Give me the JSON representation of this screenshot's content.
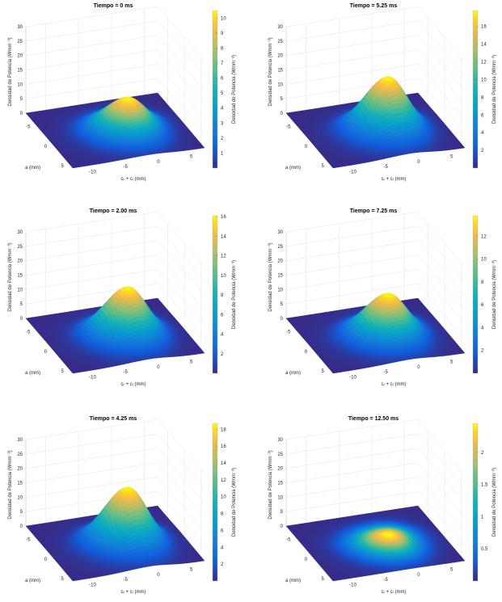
{
  "chart_data": [
    {
      "type": "surface",
      "title": "Tiempo = 0 ms",
      "xlabel": "cᵣ + cₗ (mm)",
      "ylabel": "a (mm)",
      "zlabel": "Densidad de Potencia (Wmm⁻³)",
      "colorbar_label": "Densidad de Potencia (Wmm⁻³)",
      "xlim": [
        -13,
        7
      ],
      "ylim": [
        -8,
        6
      ],
      "zlim": [
        0,
        30
      ],
      "xticks": [
        -10,
        -5,
        0,
        5
      ],
      "yticks": [
        -5,
        0,
        5
      ],
      "zticks": [
        0,
        5,
        10,
        15,
        20,
        25,
        30
      ],
      "cbar_ticks": [
        1,
        2,
        3,
        4,
        5,
        6,
        7,
        8,
        9,
        10
      ],
      "peak": 10.5,
      "peak_x": -1,
      "peak_y": -1,
      "colormap": "parula"
    },
    {
      "type": "surface",
      "title": "Tiempo = 5.25 ms",
      "xlabel": "cᵣ + cₗ (mm)",
      "ylabel": "a (mm)",
      "zlabel": "Densidad de Potencia (Wmm⁻³)",
      "colorbar_label": "Densidad de Potencia (Wmm⁻³)",
      "xlim": [
        -13,
        7
      ],
      "ylim": [
        -8,
        6
      ],
      "zlim": [
        0,
        30
      ],
      "xticks": [
        -10,
        -5,
        0,
        5
      ],
      "yticks": [
        -5,
        0,
        5
      ],
      "zticks": [
        0,
        5,
        10,
        15,
        20,
        25,
        30
      ],
      "cbar_ticks": [
        2,
        4,
        6,
        8,
        10,
        12,
        14,
        16
      ],
      "peak": 17.8,
      "peak_x": -1,
      "peak_y": -1,
      "colormap": "parula"
    },
    {
      "type": "surface",
      "title": "Tiempo = 2.00 ms",
      "xlabel": "cᵣ + cₗ (mm)",
      "ylabel": "a (mm)",
      "zlabel": "Densidad de Potencia (Wmm⁻³)",
      "colorbar_label": "Densidad de Potencia (Wmm⁻³)",
      "xlim": [
        -13,
        7
      ],
      "ylim": [
        -8,
        6
      ],
      "zlim": [
        0,
        30
      ],
      "xticks": [
        -10,
        -5,
        0,
        5
      ],
      "yticks": [
        -5,
        0,
        5
      ],
      "zticks": [
        0,
        5,
        10,
        15,
        20,
        25,
        30
      ],
      "cbar_ticks": [
        2,
        4,
        6,
        8,
        10,
        12,
        14,
        16
      ],
      "peak": 16.1,
      "peak_x": -1,
      "peak_y": -1,
      "colormap": "parula"
    },
    {
      "type": "surface",
      "title": "Tiempo = 7.25 ms",
      "xlabel": "cᵣ + cₗ (mm)",
      "ylabel": "a (mm)",
      "zlabel": "Densidad de Potencia (Wmm⁻³)",
      "colorbar_label": "Densidad de Potencia (Wmm⁻³)",
      "xlim": [
        -13,
        7
      ],
      "ylim": [
        -8,
        6
      ],
      "zlim": [
        0,
        30
      ],
      "xticks": [
        -10,
        -5,
        0,
        5
      ],
      "yticks": [
        -5,
        0,
        5
      ],
      "zticks": [
        0,
        5,
        10,
        15,
        20,
        25,
        30
      ],
      "cbar_ticks": [
        2,
        4,
        6,
        8,
        10,
        12
      ],
      "peak": 13.8,
      "peak_x": -1,
      "peak_y": -1,
      "colormap": "parula"
    },
    {
      "type": "surface",
      "title": "Tiempo = 4.25 ms",
      "xlabel": "cᵣ + cₗ (mm)",
      "ylabel": "a (mm)",
      "zlabel": "Densidad de Potencia (Wmm⁻³)",
      "colorbar_label": "Densidad de Potencia (Wmm⁻³)",
      "xlim": [
        -13,
        7
      ],
      "ylim": [
        -8,
        6
      ],
      "zlim": [
        0,
        30
      ],
      "xticks": [
        -10,
        -5,
        0,
        5
      ],
      "yticks": [
        -5,
        0,
        5
      ],
      "zticks": [
        0,
        5,
        10,
        15,
        20,
        25,
        30
      ],
      "cbar_ticks": [
        2,
        4,
        6,
        8,
        10,
        12,
        14,
        16,
        18
      ],
      "peak": 18.7,
      "peak_x": -1,
      "peak_y": -1,
      "colormap": "parula"
    },
    {
      "type": "surface",
      "title": "Tiempo = 12.50 ms",
      "xlabel": "cᵣ + cₗ (mm)",
      "ylabel": "a (mm)",
      "zlabel": "Densidad de Potencia (Wmm⁻³)",
      "colorbar_label": "Densidad de Potencia (Wmm⁻³)",
      "xlim": [
        -13,
        7
      ],
      "ylim": [
        -8,
        6
      ],
      "zlim": [
        0,
        30
      ],
      "xticks": [
        -10,
        -5,
        0,
        5
      ],
      "yticks": [
        -5,
        0,
        5
      ],
      "zticks": [
        0,
        5,
        10,
        15,
        20,
        25,
        30
      ],
      "cbar_ticks": [
        0.5,
        1,
        1.5,
        2
      ],
      "peak": 2.45,
      "peak_x": -1,
      "peak_y": -1,
      "colormap": "parula"
    }
  ]
}
